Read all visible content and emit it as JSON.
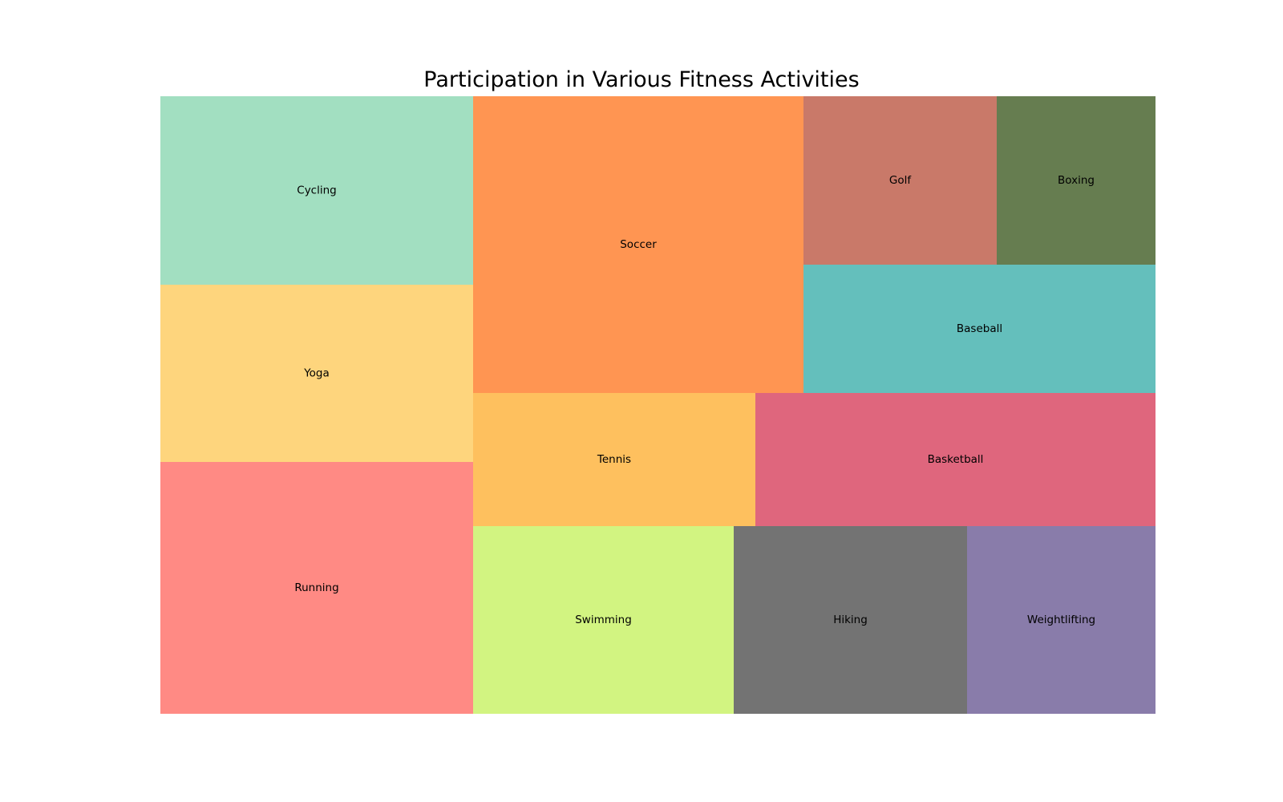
{
  "chart_data": {
    "type": "treemap",
    "title": "Participation in Various Fitness Activities",
    "tiles": [
      {
        "label": "Running",
        "value": 20,
        "color": "#ff8a84"
      },
      {
        "label": "Yoga",
        "value": 14.2,
        "color": "#fed57d"
      },
      {
        "label": "Cycling",
        "value": 15,
        "color": "#a2dfc1"
      },
      {
        "label": "Soccer",
        "value": 25,
        "color": "#ff9552"
      },
      {
        "label": "Tennis",
        "value": 9.5,
        "color": "#fec05e"
      },
      {
        "label": "Swimming",
        "value": 12,
        "color": "#d2f481"
      },
      {
        "label": "Hiking",
        "value": 11,
        "color": "#737373"
      },
      {
        "label": "Weightlifting",
        "value": 9,
        "color": "#897caa"
      },
      {
        "label": "Basketball",
        "value": 13.5,
        "color": "#df667d"
      },
      {
        "label": "Baseball",
        "value": 11.5,
        "color": "#64bfbc"
      },
      {
        "label": "Golf",
        "value": 8.3,
        "color": "#c97969"
      },
      {
        "label": "Boxing",
        "value": 6.8,
        "color": "#667d50"
      }
    ]
  }
}
